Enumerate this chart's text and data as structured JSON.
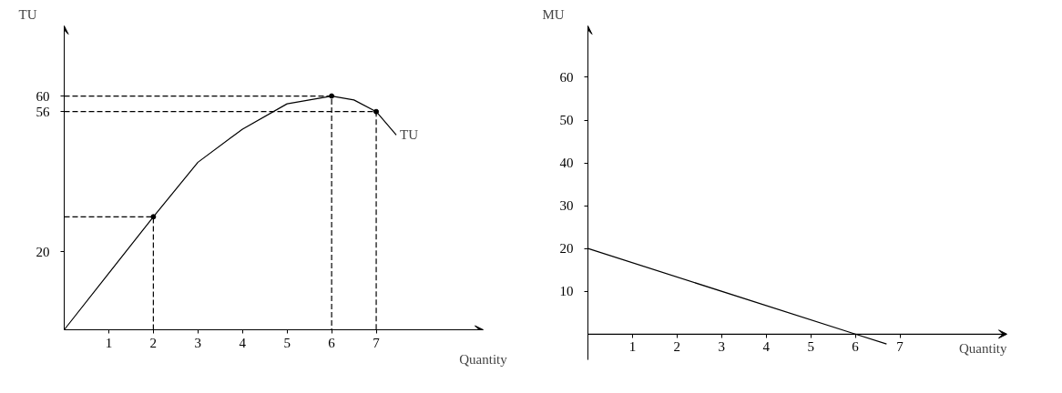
{
  "chart_data": [
    {
      "type": "line",
      "xlabel": "Quantity",
      "ylabel": "TU",
      "xlim": [
        0,
        9.4
      ],
      "ylim": [
        0,
        78
      ],
      "xticks": [
        1,
        2,
        3,
        4,
        5,
        6,
        7
      ],
      "yticks": [
        20,
        56,
        60
      ],
      "grid": false,
      "annotations": [
        {
          "text": "TU",
          "x": 7.45,
          "y": 50
        }
      ],
      "series": [
        {
          "color": "#000000",
          "line_style": "solid",
          "x": [
            0,
            1,
            2,
            3,
            4,
            5,
            6,
            6.5,
            7,
            7.45
          ],
          "values": [
            0,
            14.5,
            29,
            43,
            51.5,
            58,
            60,
            59,
            56,
            50
          ]
        },
        {
          "color": "#000000",
          "line_style": "dashed",
          "x": [
            0,
            2,
            2
          ],
          "values": [
            29,
            29,
            0
          ]
        },
        {
          "color": "#000000",
          "line_style": "dashed",
          "x": [
            0,
            6,
            6
          ],
          "values": [
            60,
            60,
            0
          ]
        },
        {
          "color": "#000000",
          "line_style": "dashed",
          "x": [
            0,
            7,
            7
          ],
          "values": [
            56,
            56,
            0
          ]
        },
        {
          "type": "scatter",
          "color": "#000000",
          "marker": "circle",
          "x": [
            2,
            6,
            7
          ],
          "values": [
            29,
            60,
            56
          ]
        }
      ]
    },
    {
      "type": "line",
      "xlabel": "Quantity",
      "ylabel": "MU",
      "xlim": [
        0,
        9.4
      ],
      "ylim": [
        -6,
        72
      ],
      "xticks": [
        1,
        2,
        3,
        4,
        5,
        6,
        7
      ],
      "yticks": [
        10,
        20,
        30,
        40,
        50,
        60
      ],
      "grid": false,
      "series": [
        {
          "color": "#000000",
          "line_style": "solid",
          "x": [
            0,
            6,
            6.7
          ],
          "values": [
            20,
            0,
            -2.3
          ]
        }
      ]
    }
  ]
}
